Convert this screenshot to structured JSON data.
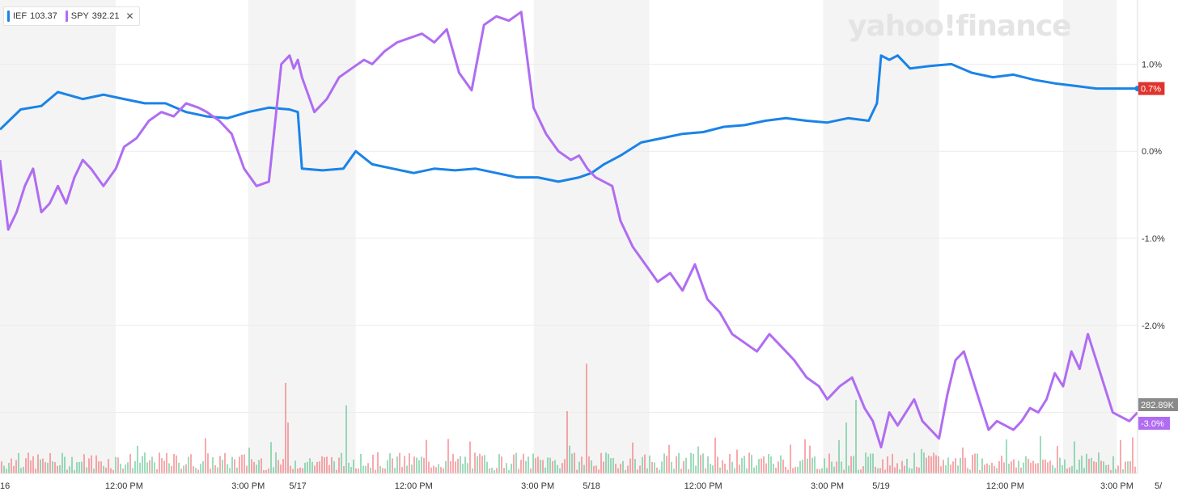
{
  "brand": "yahoo!finance",
  "legend": [
    {
      "label": "IEF",
      "value": "103.37",
      "color": "#1a83e8"
    },
    {
      "label": "SPY",
      "value": "392.21",
      "color": "#b06cf2",
      "closable": true
    }
  ],
  "close_glyph": "✕",
  "badges": {
    "ief_pct": {
      "text": "0.7%",
      "color": "#e0332d"
    },
    "volume": {
      "text": "282.89K",
      "color": "#8a8a8a"
    },
    "spy_pct": {
      "text": "-3.0%",
      "color": "#b06cf2"
    }
  },
  "chart_data": {
    "type": "line",
    "x_unit": "trading hour index (4 sessions, 9:30–16:00, with pre/post market)",
    "xlim": [
      0,
      27.5
    ],
    "ylim": [
      -3.7,
      1.7
    ],
    "y_ticks": [
      {
        "v": 1.0,
        "label": "1.0%"
      },
      {
        "v": 0.0,
        "label": "0.0%"
      },
      {
        "v": -1.0,
        "label": "-1.0%"
      },
      {
        "v": -2.0,
        "label": "-2.0%"
      }
    ],
    "x_ticks": [
      {
        "x": 0.0,
        "label": "16"
      },
      {
        "x": 3.0,
        "label": "12:00 PM"
      },
      {
        "x": 6.0,
        "label": "3:00 PM"
      },
      {
        "x": 7.2,
        "label": "5/17"
      },
      {
        "x": 10.0,
        "label": "12:00 PM"
      },
      {
        "x": 13.0,
        "label": "3:00 PM"
      },
      {
        "x": 14.3,
        "label": "5/18"
      },
      {
        "x": 17.0,
        "label": "12:00 PM"
      },
      {
        "x": 20.0,
        "label": "3:00 PM"
      },
      {
        "x": 21.3,
        "label": "5/19"
      },
      {
        "x": 24.3,
        "label": "12:00 PM"
      },
      {
        "x": 27.0,
        "label": "3:00 PM"
      },
      {
        "x": 28.0,
        "label": "5/"
      }
    ],
    "shaded_bands": [
      [
        0.0,
        2.8
      ],
      [
        6.0,
        8.6
      ],
      [
        12.9,
        15.7
      ],
      [
        19.9,
        22.7
      ],
      [
        25.7,
        27.0
      ]
    ],
    "grid": true,
    "legend_position": "top-left",
    "series": [
      {
        "name": "IEF",
        "color": "#1a83e8",
        "x": [
          0.0,
          0.5,
          1.0,
          1.4,
          2.0,
          2.5,
          3.0,
          3.5,
          4.0,
          4.5,
          5.0,
          5.5,
          6.0,
          6.5,
          7.0,
          7.2,
          7.3,
          7.8,
          8.3,
          8.6,
          9.0,
          9.5,
          10.0,
          10.5,
          11.0,
          11.5,
          12.0,
          12.5,
          13.0,
          13.5,
          14.0,
          14.3,
          14.6,
          15.0,
          15.5,
          16.0,
          16.5,
          17.0,
          17.5,
          18.0,
          18.5,
          19.0,
          19.5,
          20.0,
          20.5,
          21.0,
          21.2,
          21.3,
          21.5,
          21.7,
          22.0,
          22.5,
          23.0,
          23.5,
          24.0,
          24.5,
          25.0,
          25.5,
          26.0,
          26.5,
          27.0,
          27.5
        ],
        "y": [
          0.25,
          0.48,
          0.52,
          0.68,
          0.6,
          0.65,
          0.6,
          0.55,
          0.55,
          0.45,
          0.4,
          0.38,
          0.45,
          0.5,
          0.48,
          0.45,
          -0.2,
          -0.22,
          -0.2,
          0.0,
          -0.15,
          -0.2,
          -0.25,
          -0.2,
          -0.22,
          -0.2,
          -0.25,
          -0.3,
          -0.3,
          -0.35,
          -0.3,
          -0.25,
          -0.15,
          -0.05,
          0.1,
          0.15,
          0.2,
          0.22,
          0.28,
          0.3,
          0.35,
          0.38,
          0.35,
          0.33,
          0.38,
          0.35,
          0.55,
          1.1,
          1.05,
          1.1,
          0.95,
          0.98,
          1.0,
          0.9,
          0.85,
          0.88,
          0.82,
          0.78,
          0.75,
          0.72,
          0.72,
          0.72
        ]
      },
      {
        "name": "SPY",
        "color": "#b06cf2",
        "x": [
          0.0,
          0.2,
          0.4,
          0.6,
          0.8,
          1.0,
          1.2,
          1.4,
          1.6,
          1.8,
          2.0,
          2.2,
          2.5,
          2.8,
          3.0,
          3.3,
          3.6,
          3.9,
          4.2,
          4.5,
          4.8,
          5.0,
          5.3,
          5.6,
          5.9,
          6.2,
          6.5,
          6.8,
          7.0,
          7.1,
          7.2,
          7.3,
          7.6,
          7.9,
          8.2,
          8.5,
          8.8,
          9.0,
          9.3,
          9.6,
          9.9,
          10.2,
          10.5,
          10.8,
          11.1,
          11.4,
          11.7,
          12.0,
          12.3,
          12.6,
          12.9,
          13.2,
          13.5,
          13.8,
          14.0,
          14.2,
          14.4,
          14.6,
          14.8,
          15.0,
          15.3,
          15.6,
          15.9,
          16.2,
          16.5,
          16.8,
          17.1,
          17.4,
          17.7,
          18.0,
          18.3,
          18.6,
          18.9,
          19.2,
          19.5,
          19.8,
          20.0,
          20.3,
          20.6,
          20.9,
          21.1,
          21.3,
          21.5,
          21.7,
          21.9,
          22.1,
          22.3,
          22.5,
          22.7,
          22.9,
          23.1,
          23.3,
          23.5,
          23.7,
          23.9,
          24.1,
          24.3,
          24.5,
          24.7,
          24.9,
          25.1,
          25.3,
          25.5,
          25.7,
          25.9,
          26.1,
          26.3,
          26.5,
          26.7,
          26.9,
          27.1,
          27.3,
          27.5
        ],
        "y": [
          -0.1,
          -0.9,
          -0.7,
          -0.4,
          -0.2,
          -0.7,
          -0.6,
          -0.4,
          -0.6,
          -0.3,
          -0.1,
          -0.2,
          -0.4,
          -0.2,
          0.05,
          0.15,
          0.35,
          0.45,
          0.4,
          0.55,
          0.5,
          0.45,
          0.35,
          0.2,
          -0.2,
          -0.4,
          -0.35,
          1.0,
          1.1,
          0.95,
          1.05,
          0.85,
          0.45,
          0.6,
          0.85,
          0.95,
          1.05,
          1.0,
          1.15,
          1.25,
          1.3,
          1.35,
          1.25,
          1.4,
          0.9,
          0.7,
          1.45,
          1.55,
          1.5,
          1.6,
          0.5,
          0.2,
          0.0,
          -0.1,
          -0.05,
          -0.2,
          -0.3,
          -0.35,
          -0.4,
          -0.8,
          -1.1,
          -1.3,
          -1.5,
          -1.4,
          -1.6,
          -1.3,
          -1.7,
          -1.85,
          -2.1,
          -2.2,
          -2.3,
          -2.1,
          -2.25,
          -2.4,
          -2.6,
          -2.7,
          -2.85,
          -2.7,
          -2.6,
          -2.95,
          -3.1,
          -3.4,
          -3.0,
          -3.15,
          -3.0,
          -2.85,
          -3.1,
          -3.2,
          -3.3,
          -2.8,
          -2.4,
          -2.3,
          -2.6,
          -2.9,
          -3.2,
          -3.1,
          -3.15,
          -3.2,
          -3.1,
          -2.95,
          -3.0,
          -2.85,
          -2.55,
          -2.7,
          -2.3,
          -2.5,
          -2.1,
          -2.4,
          -2.7,
          -3.0,
          -3.05,
          -3.1,
          -3.0
        ]
      }
    ],
    "volume": {
      "name": "Volume",
      "max_label": "282.89K"
    }
  }
}
